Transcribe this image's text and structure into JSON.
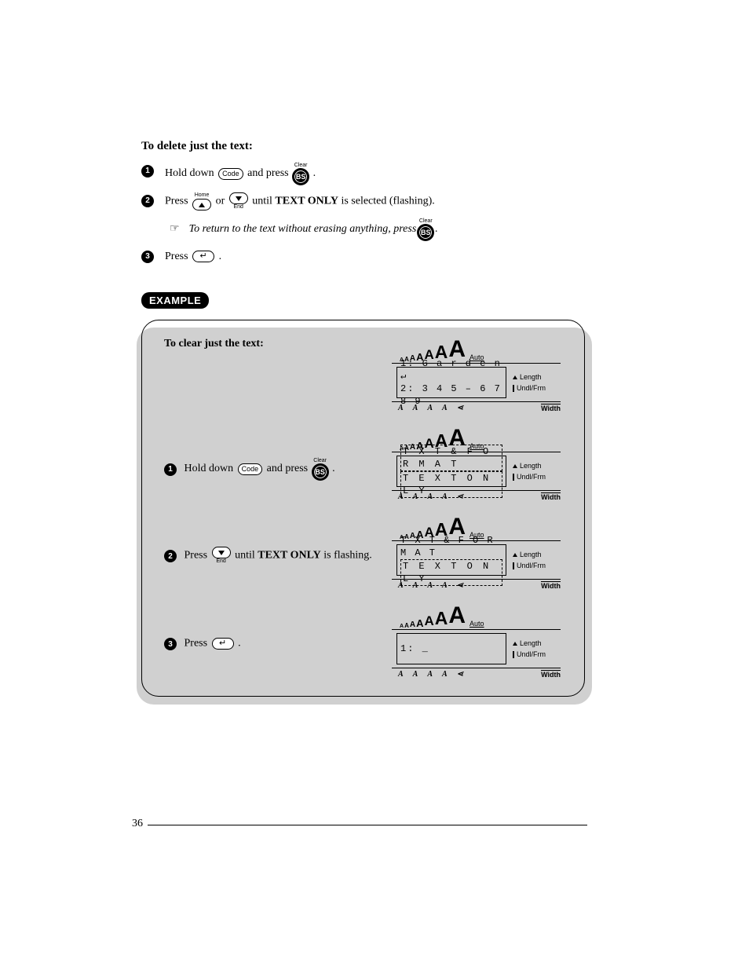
{
  "heading": "To delete just the text:",
  "steps": {
    "s1_a": "Hold down ",
    "s1_b": " and press ",
    "s1_c": ".",
    "s2_a": "Press ",
    "s2_b": " or ",
    "s2_c": " until ",
    "s2_bold": "TEXT ONLY",
    "s2_d": " is selected (flashing).",
    "note_a": "To return to the text without erasing anything, press ",
    "note_b": ".",
    "s3_a": "Press ",
    "s3_b": "."
  },
  "keys": {
    "code": "Code",
    "bs": "BS",
    "clear": "Clear",
    "home": "Home",
    "end": "End"
  },
  "example_label": "EXAMPLE",
  "example": {
    "title": "To clear just the text:",
    "step1_a": "Hold down ",
    "step1_b": " and press ",
    "step1_c": ".",
    "step2_a": "Press ",
    "step2_b": " until ",
    "step2_bold": "TEXT ONLY",
    "step2_c": " is flashing.",
    "step3_a": "Press ",
    "step3_b": "."
  },
  "lcd": {
    "auto": "Auto",
    "length": "Length",
    "undl": "Undl/Frm",
    "width": "Width",
    "style_icons": [
      "A",
      "A",
      "A",
      "A",
      "⋖"
    ],
    "size_letters": [
      "A",
      "A",
      "A",
      "A",
      "A",
      "A",
      "A"
    ],
    "size_font_sizes": [
      7,
      8,
      10,
      13,
      17,
      23,
      30
    ],
    "d1_l1": "1: G a r d e n ↵",
    "d1_l2": "2: 3 4 5 – 6 7 8 9",
    "d2_l1": "T X T & F O R M A T",
    "d2_l2": "T E X T  O N L Y",
    "d3_l1": "T X T & F O R M A T",
    "d3_l2": "T E X T  O N L Y",
    "d4_l1": "1: _"
  },
  "page_number": "36"
}
